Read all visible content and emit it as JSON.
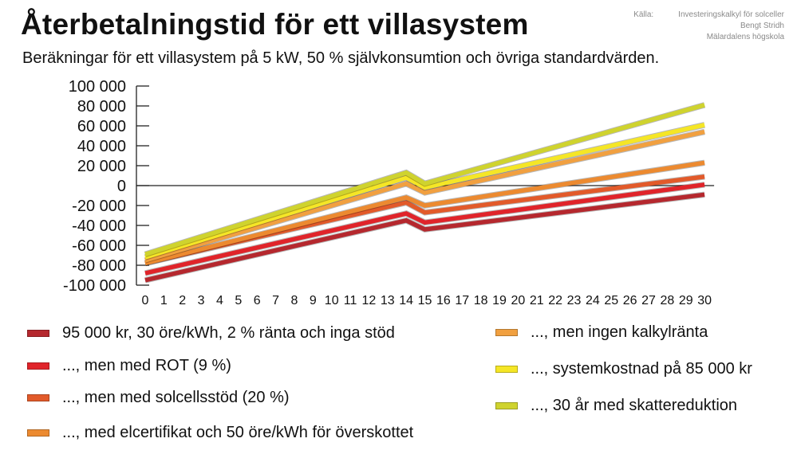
{
  "header": {
    "title": "Återbetalningstid för ett villasystem",
    "subtitle": "Beräkningar för ett villasystem på 5 kW, 50 % självkonsumtion och övriga standardvärden.",
    "source_label": "Källa:",
    "source_lines": [
      "Investeringskalkyl för solceller",
      "Bengt Stridh",
      "Mälardalens högskola"
    ]
  },
  "chart_data": {
    "type": "line",
    "title": "Återbetalningstid för ett villasystem",
    "xlabel": "",
    "ylabel": "",
    "x": [
      0,
      14,
      15,
      30
    ],
    "xticks": [
      0,
      1,
      2,
      3,
      4,
      5,
      6,
      7,
      8,
      9,
      10,
      11,
      12,
      13,
      14,
      15,
      16,
      17,
      18,
      19,
      20,
      21,
      22,
      23,
      24,
      25,
      26,
      27,
      28,
      29,
      30
    ],
    "ylim": [
      -100000,
      100000
    ],
    "yticks": [
      -100000,
      -80000,
      -60000,
      -40000,
      -20000,
      0,
      20000,
      40000,
      60000,
      80000,
      100000
    ],
    "ytick_labels": [
      "-100 000",
      "-80 000",
      "-60 000",
      "-40 000",
      "-20 000",
      "0",
      "20 000",
      "40 000",
      "60 000",
      "80 000",
      "100 000"
    ],
    "grid": false,
    "legend_position": "bottom",
    "series": [
      {
        "name": "95 000 kr, 30 öre/kWh, 2 % ränta och inga stöd",
        "color": "#b5282e",
        "values": [
          -95000,
          -35000,
          -44000,
          -9000
        ]
      },
      {
        "name": "..., men med ROT (9 %)",
        "color": "#e0242a",
        "values": [
          -88000,
          -28000,
          -37000,
          1000
        ]
      },
      {
        "name": "..., men med solcellsstöd (20 %)",
        "color": "#e25a2a",
        "values": [
          -78000,
          -17000,
          -27000,
          9000
        ]
      },
      {
        "name": "..., med elcertifikat och 50 öre/kWh för överskottet",
        "color": "#ec8a30",
        "values": [
          -78000,
          -12000,
          -20000,
          23000
        ]
      },
      {
        "name": "..., men ingen kalkylränta",
        "color": "#f1a040",
        "values": [
          -75000,
          2000,
          -7000,
          54000
        ]
      },
      {
        "name": "..., systemkostnad på 85 000 kr",
        "color": "#f5e626",
        "values": [
          -72000,
          8000,
          -2000,
          61000
        ]
      },
      {
        "name": "..., 30 år med skattereduktion",
        "color": "#cfd32e",
        "values": [
          -69000,
          13000,
          2000,
          81000
        ]
      }
    ]
  }
}
